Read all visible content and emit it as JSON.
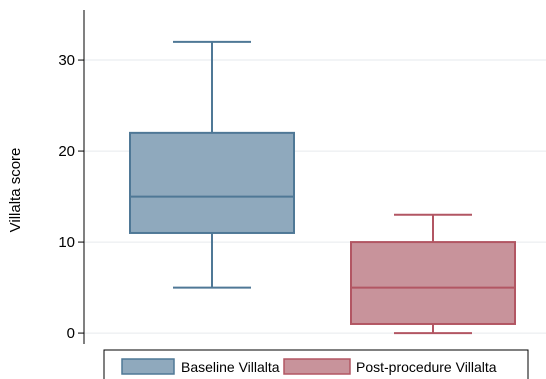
{
  "chart_data": {
    "type": "box",
    "ylabel": "Villalta score",
    "xlabel": "",
    "ylim": [
      -1.2,
      35.5
    ],
    "yticks": [
      0,
      10,
      20,
      30
    ],
    "grid": true,
    "legend_position": "bottom",
    "series": [
      {
        "name": "Baseline Villalta",
        "whisker_low": 5,
        "q1": 11,
        "median": 15,
        "q3": 22,
        "whisker_high": 32,
        "fill": "#8fa9bd",
        "stroke": "#4f7896"
      },
      {
        "name": "Post-procedure Villalta",
        "whisker_low": 0,
        "q1": 1,
        "median": 5,
        "q3": 10,
        "whisker_high": 13,
        "fill": "#c8939b",
        "stroke": "#b25663"
      }
    ]
  }
}
